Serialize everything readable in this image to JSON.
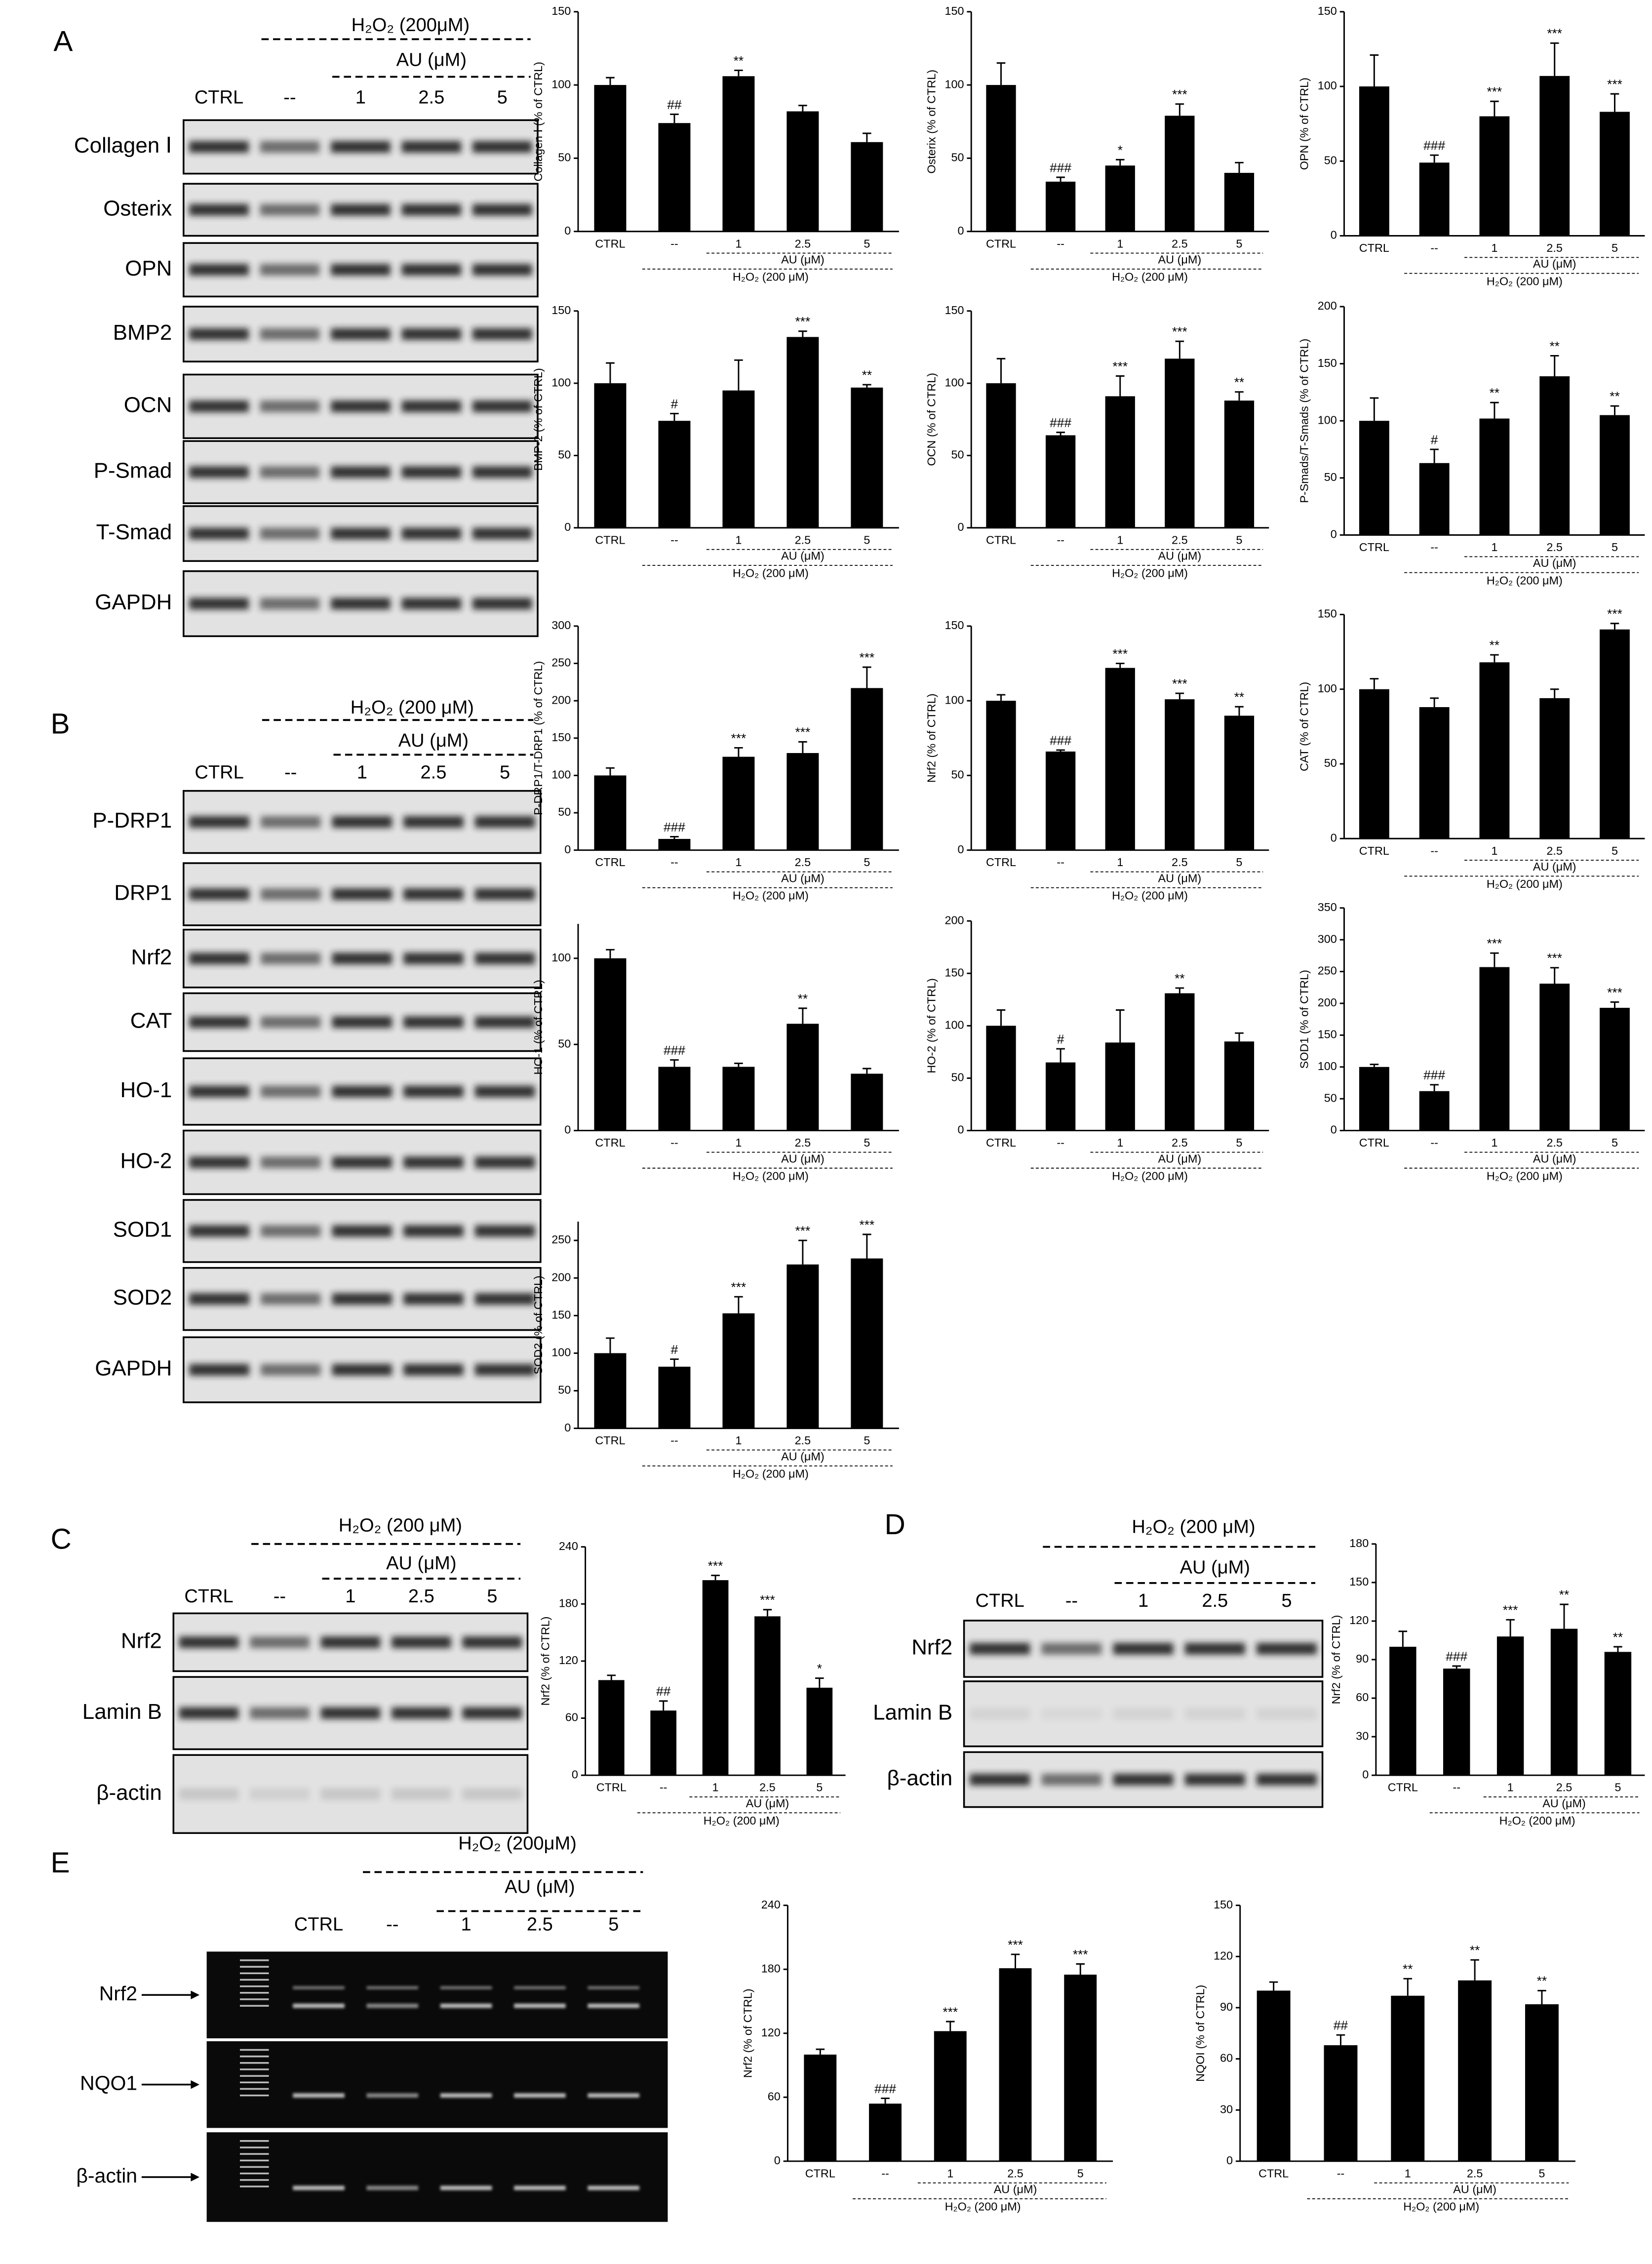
{
  "blot_panels": [
    {
      "letter": "A",
      "treatment": "H₂O₂ (200μM)",
      "group": "AU (μM)",
      "lanes": [
        "CTRL",
        "--",
        "1",
        "2.5",
        "5"
      ],
      "rows": [
        "Collagen Ⅰ",
        "Osterix",
        "OPN",
        "BMP2",
        "OCN",
        "P-Smad",
        "T-Smad",
        "GAPDH"
      ]
    },
    {
      "letter": "B",
      "treatment": "H₂O₂ (200 μM)",
      "group": "AU (μM)",
      "lanes": [
        "CTRL",
        "--",
        "1",
        "2.5",
        "5"
      ],
      "rows": [
        "P-DRP1",
        "DRP1",
        "Nrf2",
        "CAT",
        "HO-1",
        "HO-2",
        "SOD1",
        "SOD2",
        "GAPDH"
      ]
    },
    {
      "letter": "C",
      "treatment": "H₂O₂ (200 μM)",
      "group": "AU (μM)",
      "lanes": [
        "CTRL",
        "--",
        "1",
        "2.5",
        "5"
      ],
      "rows": [
        "Nrf2",
        "Lamin B",
        "β-actin"
      ]
    },
    {
      "letter": "D",
      "treatment": "H₂O₂ (200 μM)",
      "group": "AU (μM)",
      "lanes": [
        "CTRL",
        "--",
        "1",
        "2.5",
        "5"
      ],
      "rows": [
        "Nrf2",
        "Lamin B",
        "β-actin"
      ]
    },
    {
      "letter": "E",
      "treatment": "H₂O₂ (200μM)",
      "group": "AU (μM)",
      "lanes": [
        "CTRL",
        "--",
        "1",
        "2.5",
        "5"
      ],
      "rows": [
        "Nrf2",
        "NQO1",
        "β-actin"
      ]
    }
  ],
  "chart_data": [
    {
      "type": "bar",
      "ylabel": "Collagen Ⅰ (% of CTRL)",
      "categories": [
        "CTRL",
        "--",
        "1",
        "2.5",
        "5"
      ],
      "values": [
        100,
        74,
        106,
        82,
        61
      ],
      "errors": [
        5,
        6,
        4,
        4,
        6
      ],
      "significance": [
        null,
        "##",
        "**",
        null,
        null
      ],
      "group_label": "AU (μM)",
      "treatment_label": "H₂O₂ (200 μM)",
      "ylim": [
        0,
        150
      ],
      "yticks": [
        0,
        50,
        100,
        150
      ],
      "color": "#000000"
    },
    {
      "type": "bar",
      "ylabel": "Osterix (% of CTRL)",
      "categories": [
        "CTRL",
        "--",
        "1",
        "2.5",
        "5"
      ],
      "values": [
        100,
        34,
        45,
        79,
        40
      ],
      "errors": [
        15,
        3,
        4,
        8,
        7
      ],
      "significance": [
        null,
        "###",
        "*",
        "***",
        null
      ],
      "group_label": "AU (μM)",
      "treatment_label": "H₂O₂ (200 μM)",
      "ylim": [
        0,
        150
      ],
      "yticks": [
        0,
        50,
        100,
        150
      ],
      "color": "#000000"
    },
    {
      "type": "bar",
      "ylabel": "OPN (% of CTRL)",
      "categories": [
        "CTRL",
        "--",
        "1",
        "2.5",
        "5"
      ],
      "values": [
        100,
        49,
        80,
        107,
        83
      ],
      "errors": [
        21,
        5,
        10,
        22,
        12
      ],
      "significance": [
        null,
        "###",
        "***",
        "***",
        "***"
      ],
      "group_label": "AU (μM)",
      "treatment_label": "H₂O₂ (200 μM)",
      "ylim": [
        0,
        150
      ],
      "yticks": [
        0,
        50,
        100,
        150
      ],
      "color": "#000000"
    },
    {
      "type": "bar",
      "ylabel": "BMP-2 (% of CTRL)",
      "categories": [
        "CTRL",
        "--",
        "1",
        "2.5",
        "5"
      ],
      "values": [
        100,
        74,
        95,
        132,
        97
      ],
      "errors": [
        14,
        5,
        21,
        4,
        2
      ],
      "significance": [
        null,
        "#",
        null,
        "***",
        "**"
      ],
      "group_label": "AU (μM)",
      "treatment_label": "H₂O₂ (200 μM)",
      "ylim": [
        0,
        150
      ],
      "yticks": [
        0,
        50,
        100,
        150
      ],
      "color": "#000000"
    },
    {
      "type": "bar",
      "ylabel": "OCN (% of CTRL)",
      "categories": [
        "CTRL",
        "--",
        "1",
        "2.5",
        "5"
      ],
      "values": [
        100,
        64,
        91,
        117,
        88
      ],
      "errors": [
        17,
        2,
        14,
        12,
        6
      ],
      "significance": [
        null,
        "###",
        "***",
        "***",
        "**"
      ],
      "group_label": "AU (μM)",
      "treatment_label": "H₂O₂ (200 μM)",
      "ylim": [
        0,
        150
      ],
      "yticks": [
        0,
        50,
        100,
        150
      ],
      "color": "#000000"
    },
    {
      "type": "bar",
      "ylabel": "P-Smads/T-Smads (% of CTRL)",
      "categories": [
        "CTRL",
        "--",
        "1",
        "2.5",
        "5"
      ],
      "values": [
        100,
        63,
        102,
        139,
        105
      ],
      "errors": [
        20,
        12,
        14,
        18,
        8
      ],
      "significance": [
        null,
        "#",
        "**",
        "**",
        "**"
      ],
      "group_label": "AU (μM)",
      "treatment_label": "H₂O₂ (200 μM)",
      "ylim": [
        0,
        200
      ],
      "yticks": [
        0,
        50,
        100,
        150,
        200
      ],
      "color": "#000000"
    },
    {
      "type": "bar",
      "ylabel": "P-DRP1/T-DRP1 (% of CTRL)",
      "categories": [
        "CTRL",
        "--",
        "1",
        "2.5",
        "5"
      ],
      "values": [
        100,
        15,
        125,
        130,
        217
      ],
      "errors": [
        10,
        3,
        12,
        15,
        28
      ],
      "significance": [
        null,
        "###",
        "***",
        "***",
        "***"
      ],
      "group_label": "AU (μM)",
      "treatment_label": "H₂O₂ (200 μM)",
      "ylim": [
        0,
        300
      ],
      "yticks": [
        0,
        50,
        100,
        150,
        200,
        250,
        300
      ],
      "color": "#000000"
    },
    {
      "type": "bar",
      "ylabel": "Nrf2 (% of CTRL)",
      "categories": [
        "CTRL",
        "--",
        "1",
        "2.5",
        "5"
      ],
      "values": [
        100,
        66,
        122,
        101,
        90
      ],
      "errors": [
        4,
        1,
        3,
        4,
        6
      ],
      "significance": [
        null,
        "###",
        "***",
        "***",
        "**"
      ],
      "group_label": "AU (μM)",
      "treatment_label": "H₂O₂ (200 μM)",
      "ylim": [
        0,
        150
      ],
      "yticks": [
        0,
        50,
        100,
        150
      ],
      "color": "#000000"
    },
    {
      "type": "bar",
      "ylabel": "CAT (% of CTRL)",
      "categories": [
        "CTRL",
        "--",
        "1",
        "2.5",
        "5"
      ],
      "values": [
        100,
        88,
        118,
        94,
        140
      ],
      "errors": [
        7,
        6,
        5,
        6,
        4
      ],
      "significance": [
        null,
        null,
        "**",
        null,
        "***"
      ],
      "group_label": "AU (μM)",
      "treatment_label": "H₂O₂ (200 μM)",
      "ylim": [
        0,
        150
      ],
      "yticks": [
        0,
        50,
        100,
        150
      ],
      "color": "#000000"
    },
    {
      "type": "bar",
      "ylabel": "HO-1 (% of CTRL)",
      "categories": [
        "CTRL",
        "--",
        "1",
        "2.5",
        "5"
      ],
      "values": [
        100,
        37,
        37,
        62,
        33
      ],
      "errors": [
        5,
        4,
        2,
        9,
        3
      ],
      "significance": [
        null,
        "###",
        null,
        "**",
        null
      ],
      "group_label": "AU (μM)",
      "treatment_label": "H₂O₂ (200 μM)",
      "ylim": [
        0,
        120
      ],
      "yticks": [
        0,
        50,
        100
      ],
      "color": "#000000"
    },
    {
      "type": "bar",
      "ylabel": "HO-2 (% of CTRL)",
      "categories": [
        "CTRL",
        "--",
        "1",
        "2.5",
        "5"
      ],
      "values": [
        100,
        65,
        84,
        131,
        85
      ],
      "errors": [
        15,
        13,
        31,
        5,
        8
      ],
      "significance": [
        null,
        "#",
        null,
        "**",
        null
      ],
      "group_label": "AU (μM)",
      "treatment_label": "H₂O₂ (200 μM)",
      "ylim": [
        0,
        200
      ],
      "yticks": [
        0,
        50,
        100,
        150,
        200
      ],
      "color": "#000000"
    },
    {
      "type": "bar",
      "ylabel": "SOD1 (% of CTRL)",
      "categories": [
        "CTRL",
        "--",
        "1",
        "2.5",
        "5"
      ],
      "values": [
        100,
        62,
        257,
        231,
        193
      ],
      "errors": [
        4,
        10,
        22,
        25,
        9
      ],
      "significance": [
        null,
        "###",
        "***",
        "***",
        "***"
      ],
      "group_label": "AU (μM)",
      "treatment_label": "H₂O₂ (200 μM)",
      "ylim": [
        0,
        350
      ],
      "yticks": [
        0,
        50,
        100,
        150,
        200,
        250,
        300,
        350
      ],
      "color": "#000000"
    },
    {
      "type": "bar",
      "ylabel": "SOD2 (% of CTRL)",
      "categories": [
        "CTRL",
        "--",
        "1",
        "2.5",
        "5"
      ],
      "values": [
        100,
        82,
        153,
        218,
        226
      ],
      "errors": [
        20,
        10,
        22,
        32,
        32
      ],
      "significance": [
        null,
        "#",
        "***",
        "***",
        "***"
      ],
      "group_label": "AU (μM)",
      "treatment_label": "H₂O₂ (200 μM)",
      "ylim": [
        0,
        275
      ],
      "yticks": [
        0,
        50,
        100,
        150,
        200,
        250
      ],
      "color": "#000000"
    },
    {
      "type": "bar",
      "ylabel": "Nrf2 (% of CTRL)",
      "categories": [
        "CTRL",
        "--",
        "1",
        "2.5",
        "5"
      ],
      "values": [
        100,
        68,
        205,
        167,
        92
      ],
      "errors": [
        5,
        10,
        5,
        7,
        10
      ],
      "significance": [
        null,
        "##",
        "***",
        "***",
        "*"
      ],
      "group_label": "AU (μM)",
      "treatment_label": "H₂O₂ (200 μM)",
      "ylim": [
        0,
        240
      ],
      "yticks": [
        0,
        60,
        120,
        180,
        240
      ],
      "color": "#000000"
    },
    {
      "type": "bar",
      "ylabel": "Nrf2 (% of CTRL)",
      "categories": [
        "CTRL",
        "--",
        "1",
        "2.5",
        "5"
      ],
      "values": [
        100,
        83,
        108,
        114,
        96
      ],
      "errors": [
        12,
        2,
        13,
        19,
        4
      ],
      "significance": [
        null,
        "###",
        "***",
        "**",
        "**"
      ],
      "group_label": "AU (μM)",
      "treatment_label": "H₂O₂ (200 μM)",
      "ylim": [
        0,
        180
      ],
      "yticks": [
        0,
        30,
        60,
        90,
        120,
        150,
        180
      ],
      "color": "#000000"
    },
    {
      "type": "bar",
      "ylabel": "Nrf2 (% of CTRL)",
      "categories": [
        "CTRL",
        "--",
        "1",
        "2.5",
        "5"
      ],
      "values": [
        100,
        54,
        122,
        181,
        175
      ],
      "errors": [
        5,
        5,
        9,
        13,
        10
      ],
      "significance": [
        null,
        "###",
        "***",
        "***",
        "***"
      ],
      "group_label": "AU (μM)",
      "treatment_label": "H₂O₂ (200 μM)",
      "ylim": [
        0,
        240
      ],
      "yticks": [
        0,
        60,
        120,
        180,
        240
      ],
      "color": "#000000"
    },
    {
      "type": "bar",
      "ylabel": "NQOI (% of CTRL)",
      "categories": [
        "CTRL",
        "--",
        "1",
        "2.5",
        "5"
      ],
      "values": [
        100,
        68,
        97,
        106,
        92
      ],
      "errors": [
        5,
        6,
        10,
        12,
        8
      ],
      "significance": [
        null,
        "##",
        "**",
        "**",
        "**"
      ],
      "group_label": "AU (μM)",
      "treatment_label": "H₂O₂ (200 μM)",
      "ylim": [
        0,
        150
      ],
      "yticks": [
        0,
        30,
        60,
        90,
        120,
        150
      ],
      "color": "#000000"
    }
  ]
}
